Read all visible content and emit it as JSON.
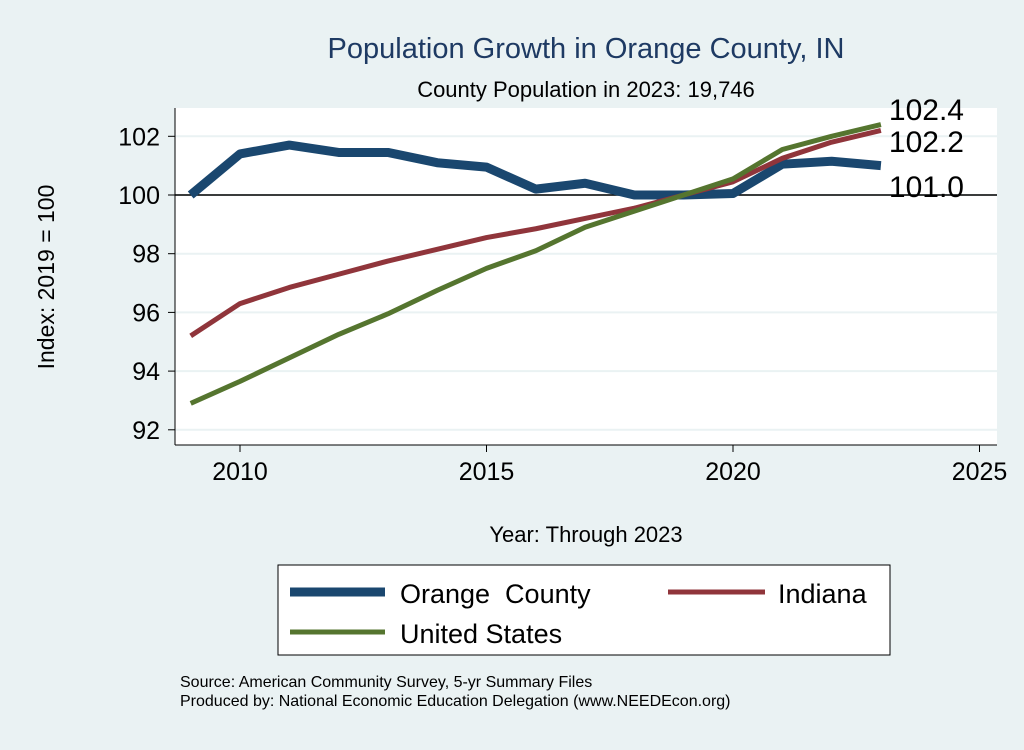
{
  "chart_data": {
    "type": "line",
    "title": "Population Growth in Orange County, IN",
    "subtitle": "County Population in 2023: 19,746",
    "xlabel": "Year: Through 2023",
    "ylabel": "Index: 2019 = 100",
    "xlim": [
      2008.7,
      2025.3
    ],
    "ylim": [
      91.5,
      103
    ],
    "xticks": [
      2010,
      2015,
      2020,
      2025
    ],
    "yticks": [
      92,
      94,
      96,
      98,
      100,
      102
    ],
    "reference_line": 100,
    "grid": true,
    "legend_position": "bottom",
    "x": [
      2009,
      2010,
      2011,
      2012,
      2013,
      2014,
      2015,
      2016,
      2017,
      2018,
      2019,
      2020,
      2021,
      2022,
      2023
    ],
    "series": [
      {
        "name": "Orange  County",
        "color": "#1a476f",
        "values": [
          100.0,
          101.4,
          101.7,
          101.45,
          101.45,
          101.1,
          100.95,
          100.2,
          100.4,
          100.0,
          100.0,
          100.05,
          101.05,
          101.15,
          101.0
        ],
        "end_label": "101.0"
      },
      {
        "name": "Indiana",
        "color": "#90353b",
        "values": [
          95.2,
          96.3,
          96.85,
          97.3,
          97.75,
          98.15,
          98.55,
          98.85,
          99.2,
          99.55,
          100.0,
          100.45,
          101.25,
          101.8,
          102.2
        ],
        "end_label": "102.2"
      },
      {
        "name": "United States",
        "color": "#55752f",
        "values": [
          92.9,
          93.65,
          94.45,
          95.25,
          95.95,
          96.75,
          97.5,
          98.1,
          98.9,
          99.45,
          100.0,
          100.55,
          101.55,
          102.0,
          102.4
        ],
        "end_label": "102.4"
      }
    ]
  },
  "notes": {
    "source": "Source: American Community Survey, 5-yr Summary Files",
    "producer": "Produced by: National Economic Education Delegation (www.NEEDEcon.org)"
  }
}
